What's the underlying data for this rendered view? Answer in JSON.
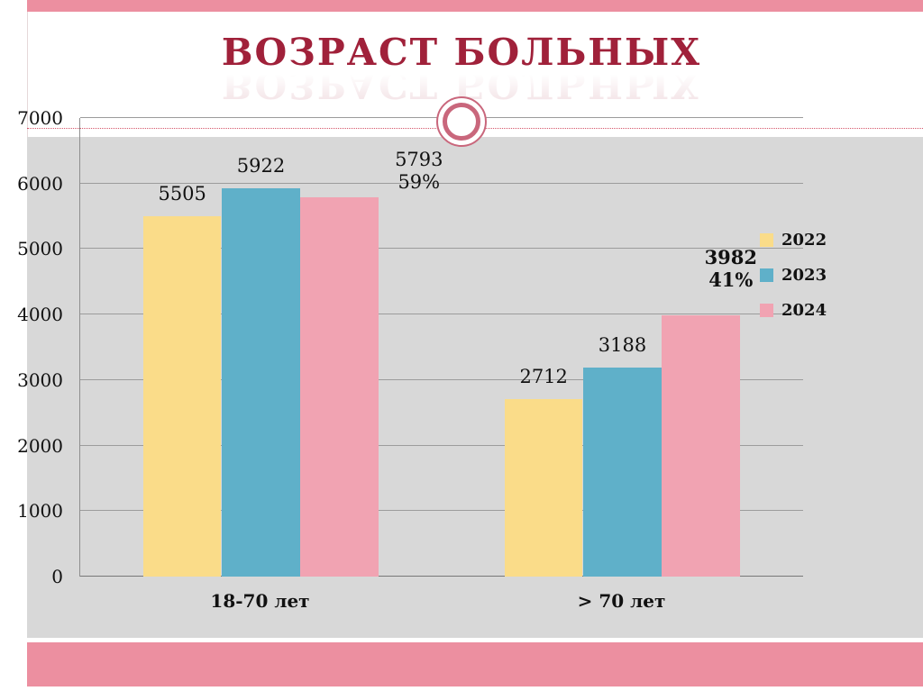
{
  "slide": {
    "title": "ВОЗРАСТ БОЛЬНЫХ"
  },
  "colors": {
    "title": "#a0213a",
    "accent_strip": "#ec8fa0",
    "chart_panel": "#d8d8d8",
    "ring": "#c9677c",
    "dotted_line": "#d4556a",
    "gridline": "#9c9c9c",
    "series_2022": "#fadc89",
    "series_2023": "#5fb0c9",
    "series_2024": "#f1a3b2"
  },
  "chart_data": {
    "type": "bar",
    "title": "ВОЗРАСТ БОЛЬНЫХ",
    "categories": [
      "18-70 лет",
      "> 70 лет"
    ],
    "series": [
      {
        "name": "2022",
        "color": "#fadc89",
        "values": [
          5505,
          2712
        ]
      },
      {
        "name": "2023",
        "color": "#5fb0c9",
        "values": [
          5922,
          3188
        ]
      },
      {
        "name": "2024",
        "color": "#f1a3b2",
        "values": [
          5793,
          3982
        ],
        "annotations": [
          "59%",
          "41%"
        ]
      }
    ],
    "ylim": [
      0,
      7000
    ],
    "yticks": [
      0,
      1000,
      2000,
      3000,
      4000,
      5000,
      6000,
      7000
    ],
    "grid": true,
    "legend_position": "right"
  }
}
